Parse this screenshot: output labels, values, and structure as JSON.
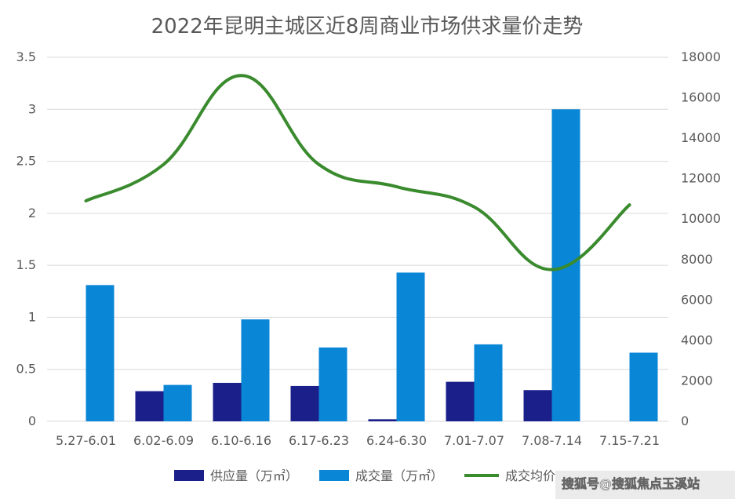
{
  "chart_data": {
    "type": "bar",
    "title": "2022年昆明主城区近8周商业市场供求量价走势",
    "categories": [
      "5.27-6.01",
      "6.02-6.09",
      "6.10-6.16",
      "6.17-6.23",
      "6.24-6.30",
      "7.01-7.07",
      "7.08-7.14",
      "7.15-7.21"
    ],
    "series": [
      {
        "name": "供应量（万㎡）",
        "type": "bar",
        "axis": "left",
        "color": "#1b1f8a",
        "values": [
          0,
          0.29,
          0.37,
          0.34,
          0.02,
          0.38,
          0.3,
          0
        ]
      },
      {
        "name": "成交量（万㎡）",
        "type": "bar",
        "axis": "left",
        "color": "#0a86d6",
        "values": [
          1.31,
          0.35,
          0.98,
          0.71,
          1.43,
          0.74,
          3.0,
          0.66
        ]
      },
      {
        "name": "成交均价",
        "type": "line",
        "axis": "right",
        "color": "#3a8a2e",
        "smooth": true,
        "values": [
          10900,
          12700,
          17100,
          12700,
          11600,
          10600,
          7500,
          10700
        ]
      }
    ],
    "y_left": {
      "min": 0,
      "max": 3.5,
      "ticks": [
        "0",
        "0.5",
        "1",
        "1.5",
        "2",
        "2.5",
        "3",
        "3.5"
      ]
    },
    "y_right": {
      "min": 0,
      "max": 18000,
      "ticks": [
        "0",
        "2000",
        "4000",
        "6000",
        "8000",
        "10000",
        "12000",
        "14000",
        "16000",
        "18000"
      ]
    },
    "grid": true,
    "legend_position": "bottom"
  },
  "watermark": "搜狐号@搜狐焦点玉溪站"
}
